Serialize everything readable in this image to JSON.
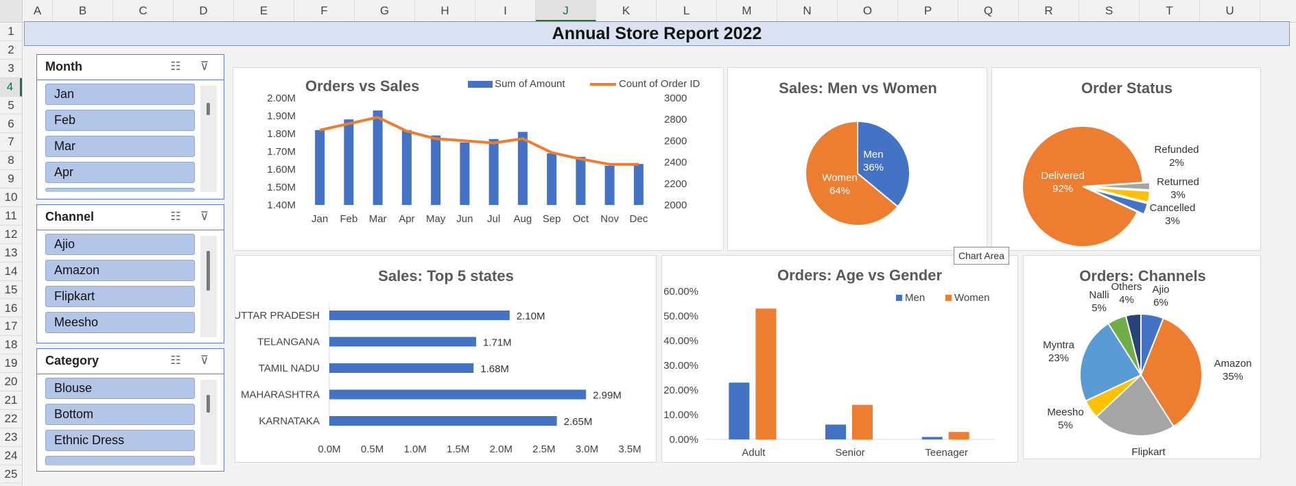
{
  "sheet": {
    "columns": [
      "A",
      "B",
      "C",
      "D",
      "E",
      "F",
      "G",
      "H",
      "I",
      "J",
      "K",
      "L",
      "M",
      "N",
      "O",
      "P",
      "Q",
      "R",
      "S",
      "T",
      "U"
    ],
    "rows": [
      "1",
      "2",
      "3",
      "4",
      "5",
      "6",
      "7",
      "8",
      "9",
      "10",
      "11",
      "12",
      "13",
      "14",
      "15",
      "16",
      "17",
      "18",
      "19",
      "20",
      "21",
      "22",
      "23",
      "24",
      "25"
    ],
    "selected_column": "J",
    "selected_row": "4"
  },
  "title": "Annual Store Report 2022",
  "slicers": [
    {
      "title": "Month",
      "items": [
        "Jan",
        "Feb",
        "Mar",
        "Apr"
      ]
    },
    {
      "title": "Channel",
      "items": [
        "Ajio",
        "Amazon",
        "Flipkart",
        "Meesho"
      ]
    },
    {
      "title": "Category",
      "items": [
        "Blouse",
        "Bottom",
        "Ethnic Dress"
      ]
    }
  ],
  "icons": {
    "multiselect": "multi-select-icon",
    "clear": "clear-filter-icon"
  },
  "tooltip": "Chart Area",
  "colors": {
    "blue": "#4472c4",
    "orange": "#ed7d31",
    "gray": "#a5a5a5",
    "yellow": "#ffc000",
    "lightblue": "#5b9bd5",
    "green": "#70ad47",
    "navy": "#264478"
  },
  "chart_data": [
    {
      "type": "bar",
      "title": "Orders vs Sales",
      "categories": [
        "Jan",
        "Feb",
        "Mar",
        "Apr",
        "May",
        "Jun",
        "Jul",
        "Aug",
        "Sep",
        "Oct",
        "Nov",
        "Dec"
      ],
      "series": [
        {
          "name": "Sum of Amount",
          "type": "bar",
          "axis": "left",
          "values": [
            1.82,
            1.88,
            1.93,
            1.82,
            1.79,
            1.75,
            1.77,
            1.81,
            1.69,
            1.67,
            1.62,
            1.63
          ]
        },
        {
          "name": "Count of Order ID",
          "type": "line",
          "axis": "right",
          "values": [
            2700,
            2760,
            2820,
            2690,
            2620,
            2600,
            2580,
            2620,
            2490,
            2430,
            2380,
            2380
          ]
        }
      ],
      "ylim": [
        1.4,
        2.0
      ],
      "yticks": [
        "1.40M",
        "1.50M",
        "1.60M",
        "1.70M",
        "1.80M",
        "1.90M",
        "2.00M"
      ],
      "y2lim": [
        2000,
        3000
      ],
      "y2ticks": [
        "2000",
        "2200",
        "2400",
        "2600",
        "2800",
        "3000"
      ],
      "legend": "top"
    },
    {
      "type": "pie",
      "title": "Sales: Men vs Women",
      "labels": [
        "Men",
        "Women"
      ],
      "values": [
        36,
        64
      ],
      "value_labels": [
        "36%",
        "64%"
      ]
    },
    {
      "type": "pie",
      "title": "Order Status",
      "labels": [
        "Delivered",
        "Refunded",
        "Returned",
        "Cancelled"
      ],
      "values": [
        92,
        2,
        3,
        3
      ],
      "value_labels": [
        "92%",
        "2%",
        "3%",
        "3%"
      ]
    },
    {
      "type": "bar",
      "orientation": "horizontal",
      "title": "Sales: Top 5 states",
      "categories": [
        "UTTAR PRADESH",
        "TELANGANA",
        "TAMIL NADU",
        "MAHARASHTRA",
        "KARNATAKA"
      ],
      "values": [
        2.1,
        1.71,
        1.68,
        2.99,
        2.65
      ],
      "value_labels": [
        "2.10M",
        "1.71M",
        "1.68M",
        "2.99M",
        "2.65M"
      ],
      "xlim": [
        0,
        3.5
      ],
      "xticks": [
        "0.0M",
        "0.5M",
        "1.0M",
        "1.5M",
        "2.0M",
        "2.5M",
        "3.0M",
        "3.5M"
      ]
    },
    {
      "type": "bar",
      "title": "Orders: Age vs Gender",
      "categories": [
        "Adult",
        "Senior",
        "Teenager"
      ],
      "series": [
        {
          "name": "Men",
          "values": [
            23,
            6,
            1
          ]
        },
        {
          "name": "Women",
          "values": [
            53,
            14,
            3
          ]
        }
      ],
      "ylim": [
        0,
        60
      ],
      "yticks": [
        "0.00%",
        "10.00%",
        "20.00%",
        "30.00%",
        "40.00%",
        "50.00%",
        "60.00%"
      ],
      "legend": "top-right"
    },
    {
      "type": "pie",
      "title": "Orders: Channels",
      "labels": [
        "Ajio",
        "Amazon",
        "Flipkart",
        "Meesho",
        "Myntra",
        "Nalli",
        "Others"
      ],
      "values": [
        6,
        35,
        22,
        5,
        23,
        5,
        4
      ],
      "value_labels": [
        "6%",
        "35%",
        "22%",
        "5%",
        "23%",
        "5%",
        "4%"
      ]
    }
  ]
}
